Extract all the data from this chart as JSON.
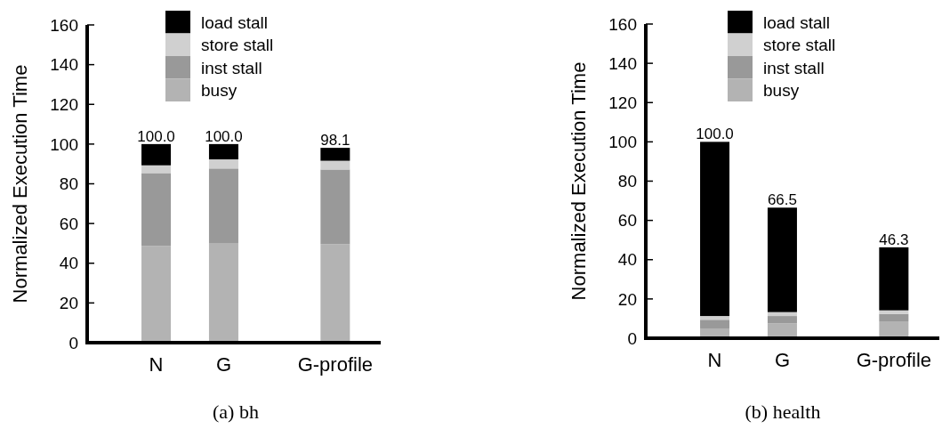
{
  "chart_data": [
    {
      "type": "bar",
      "title": "(a) bh",
      "ylabel": "Normalized Execution Time",
      "categories": [
        "N",
        "G",
        "G-profile"
      ],
      "stacked": true,
      "ylim": [
        0,
        160
      ],
      "yticks": [
        0,
        20,
        40,
        60,
        80,
        100,
        120,
        140,
        160
      ],
      "legend": "top",
      "totals": [
        "100.0",
        "100.0",
        "98.1"
      ],
      "series": [
        {
          "name": "busy",
          "color": "#b3b3b3",
          "values": [
            48.7,
            49.9,
            49.6
          ]
        },
        {
          "name": "inst stall",
          "color": "#999999",
          "values": [
            36.7,
            37.8,
            37.6
          ]
        },
        {
          "name": "store stall",
          "color": "#d0d0d0",
          "values": [
            3.9,
            4.6,
            4.4
          ]
        },
        {
          "name": "load stall",
          "color": "#000000",
          "values": [
            10.7,
            7.7,
            6.5
          ]
        }
      ]
    },
    {
      "type": "bar",
      "title": "(b) health",
      "ylabel": "Normalized Execution Time",
      "categories": [
        "N",
        "G",
        "G-profile"
      ],
      "stacked": true,
      "ylim": [
        0,
        160
      ],
      "yticks": [
        0,
        20,
        40,
        60,
        80,
        100,
        120,
        140,
        160
      ],
      "legend": "top",
      "totals": [
        "100.0",
        "66.5",
        "46.3"
      ],
      "series": [
        {
          "name": "busy",
          "color": "#b3b3b3",
          "values": [
            5.0,
            7.6,
            8.6
          ]
        },
        {
          "name": "inst stall",
          "color": "#999999",
          "values": [
            4.4,
            3.7,
            3.8
          ]
        },
        {
          "name": "store stall",
          "color": "#d0d0d0",
          "values": [
            1.9,
            2.0,
            1.8
          ]
        },
        {
          "name": "load stall",
          "color": "#000000",
          "values": [
            88.7,
            53.2,
            32.1
          ]
        }
      ]
    }
  ]
}
